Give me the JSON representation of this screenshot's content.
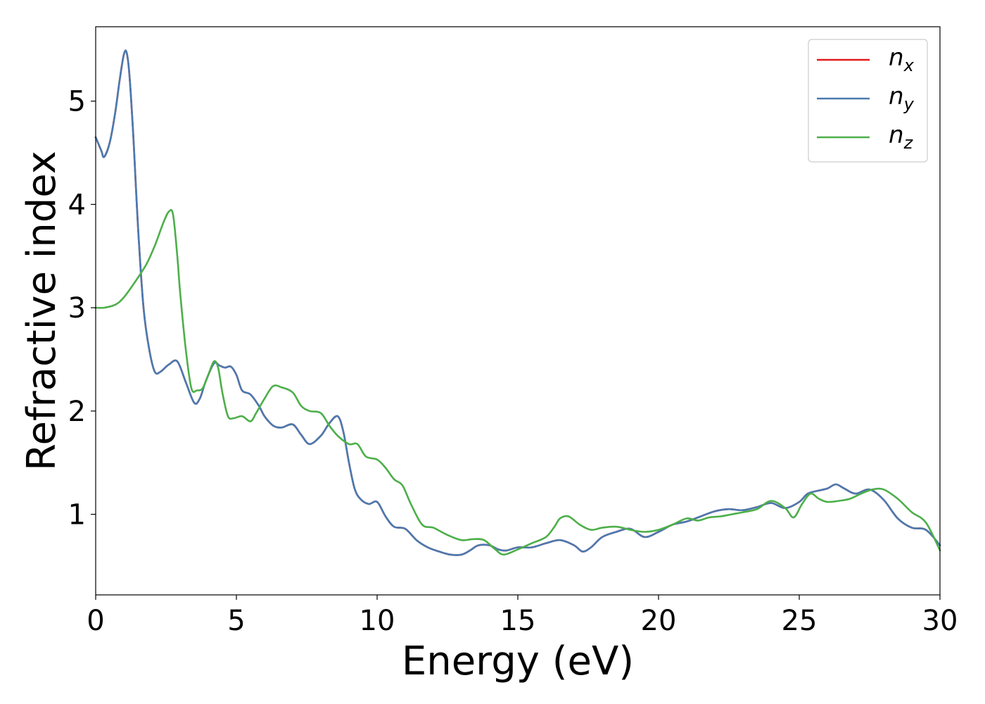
{
  "chart_data": {
    "type": "line",
    "xlabel": "Energy (eV)",
    "ylabel": "Refractive index",
    "xlim": [
      0,
      30
    ],
    "ylim": [
      0.22,
      5.72
    ],
    "xticks": [
      "0",
      "5",
      "10",
      "15",
      "20",
      "25",
      "30"
    ],
    "yticks": [
      "1",
      "2",
      "3",
      "4",
      "5"
    ],
    "grid": false,
    "legend_position": "top-right",
    "series": [
      {
        "name": "n_x",
        "legend_base": "n",
        "legend_sub": "x",
        "color": "#e41a1c",
        "x": [
          0,
          0.2,
          0.3,
          0.5,
          0.7,
          0.85,
          1.0,
          1.1,
          1.2,
          1.35,
          1.5,
          1.7,
          1.9,
          2.1,
          2.3,
          2.6,
          2.9,
          3.2,
          3.5,
          3.7,
          3.9,
          4.2,
          4.4,
          4.6,
          4.8,
          5.0,
          5.2,
          5.5,
          5.8,
          6.0,
          6.3,
          6.6,
          7.0,
          7.3,
          7.6,
          8.0,
          8.3,
          8.6,
          8.8,
          9.0,
          9.2,
          9.4,
          9.7,
          10.0,
          10.3,
          10.6,
          11.0,
          11.4,
          11.8,
          12.2,
          12.6,
          13.0,
          13.3,
          13.6,
          14.0,
          14.3,
          14.6,
          15.0,
          15.5,
          16.0,
          16.5,
          17.0,
          17.3,
          17.6,
          18.0,
          18.5,
          19.0,
          19.5,
          20.0,
          20.5,
          21.0,
          21.5,
          22.0,
          22.5,
          23.0,
          23.5,
          24.0,
          24.5,
          25.0,
          25.3,
          25.7,
          26.0,
          26.3,
          26.6,
          27.0,
          27.5,
          28.0,
          28.5,
          29.0,
          29.5,
          30.0
        ],
        "y": [
          4.65,
          4.52,
          4.46,
          4.6,
          4.9,
          5.2,
          5.45,
          5.47,
          5.25,
          4.6,
          3.8,
          3.0,
          2.6,
          2.38,
          2.38,
          2.45,
          2.48,
          2.28,
          2.08,
          2.12,
          2.28,
          2.46,
          2.44,
          2.42,
          2.43,
          2.35,
          2.2,
          2.16,
          2.05,
          1.95,
          1.86,
          1.84,
          1.87,
          1.77,
          1.68,
          1.76,
          1.88,
          1.95,
          1.8,
          1.5,
          1.25,
          1.15,
          1.1,
          1.12,
          0.98,
          0.88,
          0.86,
          0.75,
          0.68,
          0.64,
          0.61,
          0.61,
          0.65,
          0.7,
          0.7,
          0.66,
          0.65,
          0.68,
          0.68,
          0.72,
          0.75,
          0.7,
          0.64,
          0.68,
          0.78,
          0.83,
          0.86,
          0.78,
          0.83,
          0.9,
          0.93,
          0.98,
          1.03,
          1.05,
          1.04,
          1.07,
          1.11,
          1.06,
          1.12,
          1.2,
          1.23,
          1.25,
          1.29,
          1.25,
          1.2,
          1.24,
          1.14,
          0.96,
          0.87,
          0.85,
          0.7
        ]
      },
      {
        "name": "n_y",
        "legend_base": "n",
        "legend_sub": "y",
        "color": "#4a7ab0",
        "x": [
          0,
          0.2,
          0.3,
          0.5,
          0.7,
          0.85,
          1.0,
          1.1,
          1.2,
          1.35,
          1.5,
          1.7,
          1.9,
          2.1,
          2.3,
          2.6,
          2.9,
          3.2,
          3.5,
          3.7,
          3.9,
          4.2,
          4.4,
          4.6,
          4.8,
          5.0,
          5.2,
          5.5,
          5.8,
          6.0,
          6.3,
          6.6,
          7.0,
          7.3,
          7.6,
          8.0,
          8.3,
          8.6,
          8.8,
          9.0,
          9.2,
          9.4,
          9.7,
          10.0,
          10.3,
          10.6,
          11.0,
          11.4,
          11.8,
          12.2,
          12.6,
          13.0,
          13.3,
          13.6,
          14.0,
          14.3,
          14.6,
          15.0,
          15.5,
          16.0,
          16.5,
          17.0,
          17.3,
          17.6,
          18.0,
          18.5,
          19.0,
          19.5,
          20.0,
          20.5,
          21.0,
          21.5,
          22.0,
          22.5,
          23.0,
          23.5,
          24.0,
          24.5,
          25.0,
          25.3,
          25.7,
          26.0,
          26.3,
          26.6,
          27.0,
          27.5,
          28.0,
          28.5,
          29.0,
          29.5,
          30.0
        ],
        "y": [
          4.65,
          4.52,
          4.46,
          4.6,
          4.9,
          5.2,
          5.45,
          5.47,
          5.25,
          4.6,
          3.8,
          3.0,
          2.6,
          2.38,
          2.38,
          2.45,
          2.48,
          2.28,
          2.08,
          2.12,
          2.28,
          2.46,
          2.44,
          2.42,
          2.43,
          2.35,
          2.2,
          2.16,
          2.05,
          1.95,
          1.86,
          1.84,
          1.87,
          1.77,
          1.68,
          1.76,
          1.88,
          1.95,
          1.8,
          1.5,
          1.25,
          1.15,
          1.1,
          1.12,
          0.98,
          0.88,
          0.86,
          0.75,
          0.68,
          0.64,
          0.61,
          0.61,
          0.65,
          0.7,
          0.7,
          0.66,
          0.65,
          0.68,
          0.68,
          0.72,
          0.75,
          0.7,
          0.64,
          0.68,
          0.78,
          0.83,
          0.86,
          0.78,
          0.83,
          0.9,
          0.93,
          0.98,
          1.03,
          1.05,
          1.04,
          1.07,
          1.11,
          1.06,
          1.12,
          1.2,
          1.23,
          1.25,
          1.29,
          1.25,
          1.2,
          1.24,
          1.14,
          0.96,
          0.87,
          0.85,
          0.7
        ]
      },
      {
        "name": "n_z",
        "legend_base": "n",
        "legend_sub": "z",
        "color": "#4daf4a",
        "x": [
          0,
          0.3,
          0.7,
          1.0,
          1.4,
          1.8,
          2.1,
          2.4,
          2.6,
          2.75,
          2.9,
          3.0,
          3.2,
          3.4,
          3.6,
          3.8,
          4.0,
          4.2,
          4.35,
          4.5,
          4.7,
          4.9,
          5.2,
          5.5,
          5.7,
          6.0,
          6.3,
          6.6,
          7.0,
          7.3,
          7.6,
          8.0,
          8.3,
          8.6,
          9.0,
          9.3,
          9.6,
          10.0,
          10.3,
          10.6,
          10.9,
          11.2,
          11.6,
          12.0,
          12.5,
          13.0,
          13.4,
          13.8,
          14.2,
          14.5,
          15.0,
          15.5,
          16.0,
          16.3,
          16.5,
          16.8,
          17.2,
          17.6,
          18.0,
          18.5,
          19.0,
          19.5,
          20.0,
          20.5,
          21.0,
          21.4,
          21.8,
          22.2,
          22.6,
          23.0,
          23.5,
          24.0,
          24.5,
          24.8,
          25.1,
          25.4,
          25.7,
          26.0,
          26.4,
          26.8,
          27.2,
          27.6,
          28.0,
          28.5,
          29.0,
          29.5,
          30.0
        ],
        "y": [
          3.0,
          3.0,
          3.03,
          3.1,
          3.25,
          3.42,
          3.6,
          3.82,
          3.93,
          3.9,
          3.5,
          3.15,
          2.6,
          2.22,
          2.2,
          2.22,
          2.35,
          2.48,
          2.42,
          2.18,
          1.95,
          1.93,
          1.95,
          1.9,
          1.98,
          2.12,
          2.24,
          2.23,
          2.18,
          2.05,
          2.0,
          1.98,
          1.86,
          1.76,
          1.68,
          1.68,
          1.56,
          1.53,
          1.45,
          1.34,
          1.28,
          1.1,
          0.9,
          0.87,
          0.8,
          0.75,
          0.76,
          0.75,
          0.66,
          0.61,
          0.66,
          0.72,
          0.78,
          0.88,
          0.96,
          0.98,
          0.9,
          0.85,
          0.87,
          0.88,
          0.85,
          0.83,
          0.85,
          0.9,
          0.96,
          0.94,
          0.97,
          0.98,
          1.0,
          1.02,
          1.05,
          1.13,
          1.06,
          0.97,
          1.1,
          1.2,
          1.15,
          1.12,
          1.13,
          1.15,
          1.2,
          1.24,
          1.24,
          1.15,
          1.02,
          0.92,
          0.65
        ]
      }
    ]
  }
}
